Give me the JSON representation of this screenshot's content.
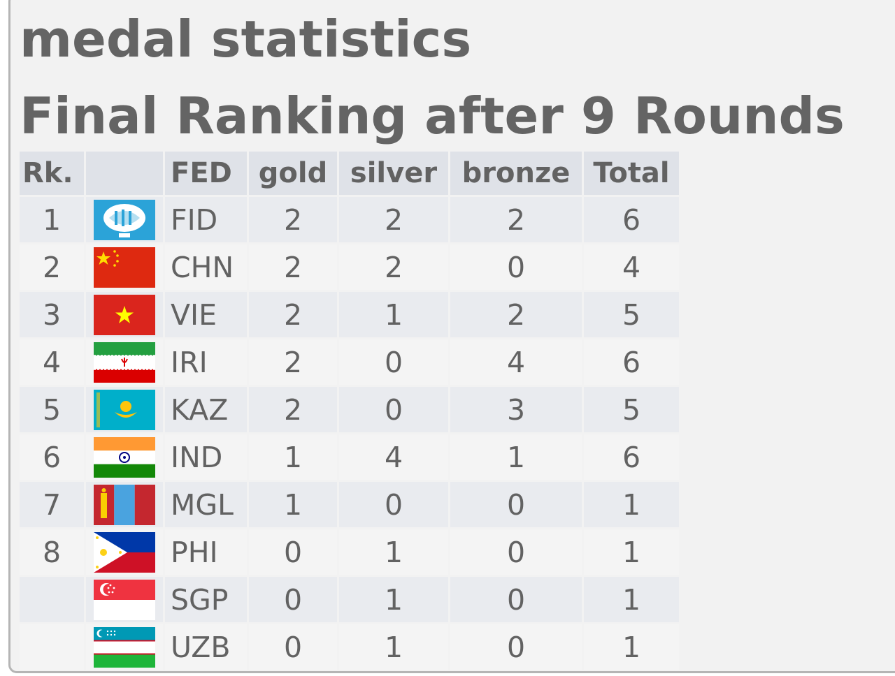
{
  "header": {
    "title": "medal statistics",
    "subtitle": "Final Ranking after 9 Rounds"
  },
  "table": {
    "columns": {
      "rank": "Rk.",
      "flag": "",
      "fed": "FED",
      "gold": "gold",
      "silver": "silver",
      "bronze": "bronze",
      "total": "Total"
    },
    "rows": [
      {
        "rank": "1",
        "flag": "fide-flag",
        "fed": "FID",
        "gold": "2",
        "silver": "2",
        "bronze": "2",
        "total": "6"
      },
      {
        "rank": "2",
        "flag": "china-flag",
        "fed": "CHN",
        "gold": "2",
        "silver": "2",
        "bronze": "0",
        "total": "4"
      },
      {
        "rank": "3",
        "flag": "vietnam-flag",
        "fed": "VIE",
        "gold": "2",
        "silver": "1",
        "bronze": "2",
        "total": "5"
      },
      {
        "rank": "4",
        "flag": "iran-flag",
        "fed": "IRI",
        "gold": "2",
        "silver": "0",
        "bronze": "4",
        "total": "6"
      },
      {
        "rank": "5",
        "flag": "kazakhstan-flag",
        "fed": "KAZ",
        "gold": "2",
        "silver": "0",
        "bronze": "3",
        "total": "5"
      },
      {
        "rank": "6",
        "flag": "india-flag",
        "fed": "IND",
        "gold": "1",
        "silver": "4",
        "bronze": "1",
        "total": "6"
      },
      {
        "rank": "7",
        "flag": "mongolia-flag",
        "fed": "MGL",
        "gold": "1",
        "silver": "0",
        "bronze": "0",
        "total": "1"
      },
      {
        "rank": "8",
        "flag": "philippines-flag",
        "fed": "PHI",
        "gold": "0",
        "silver": "1",
        "bronze": "0",
        "total": "1"
      },
      {
        "rank": "",
        "flag": "singapore-flag",
        "fed": "SGP",
        "gold": "0",
        "silver": "1",
        "bronze": "0",
        "total": "1"
      },
      {
        "rank": "",
        "flag": "uzbekistan-flag",
        "fed": "UZB",
        "gold": "0",
        "silver": "1",
        "bronze": "0",
        "total": "1"
      }
    ]
  },
  "colors": {
    "text": "#646464",
    "header_bg": "#dfe2e8",
    "row_odd": "#e9ebef",
    "row_even": "#f4f4f4"
  }
}
